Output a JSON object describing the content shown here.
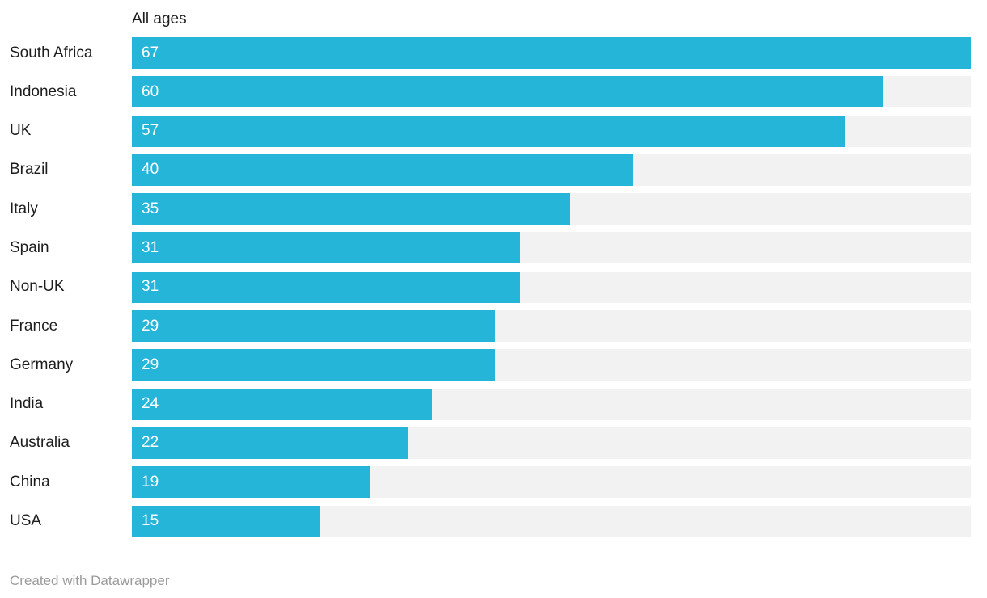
{
  "header": {
    "column_label": "All ages"
  },
  "footer": {
    "attribution": "Created with Datawrapper"
  },
  "colors": {
    "bar": "#24b5d9",
    "track": "#f2f2f2",
    "label": "#1d1d1d",
    "value_label": "#ffffff",
    "attribution": "#9b9b9b"
  },
  "chart_data": {
    "type": "bar",
    "orientation": "horizontal",
    "title": "All ages",
    "categories": [
      "South Africa",
      "Indonesia",
      "UK",
      "Brazil",
      "Italy",
      "Spain",
      "Non-UK",
      "France",
      "Germany",
      "India",
      "Australia",
      "China",
      "USA"
    ],
    "values": [
      67,
      60,
      57,
      40,
      35,
      31,
      31,
      29,
      29,
      24,
      22,
      19,
      15
    ],
    "xlabel": "",
    "ylabel": "",
    "xlim": [
      0,
      67
    ],
    "grid": false,
    "legend": false,
    "value_labels": "inside-start",
    "attribution": "Created with Datawrapper"
  }
}
